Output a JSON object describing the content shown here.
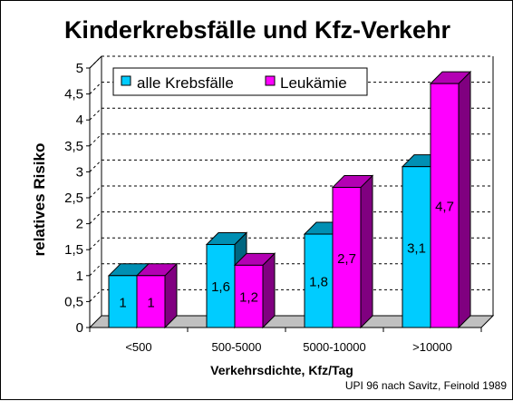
{
  "chart_data": {
    "type": "bar",
    "title": "Kinderkrebsfälle und Kfz-Verkehr",
    "xlabel": "Verkehrsdichte, Kfz/Tag",
    "ylabel": "relatives Risiko",
    "categories": [
      "<500",
      "500-5000",
      "5000-10000",
      ">10000"
    ],
    "series": [
      {
        "name": "alle Krebsfälle",
        "values": [
          1.0,
          1.6,
          1.8,
          3.1
        ],
        "labels": [
          "1",
          "1,6",
          "1,8",
          "3,1"
        ],
        "color": "#00ccff"
      },
      {
        "name": "Leukämie",
        "values": [
          1.0,
          1.2,
          2.7,
          4.7
        ],
        "labels": [
          "1",
          "1,2",
          "2,7",
          "4,7"
        ],
        "color": "#ff00ff"
      }
    ],
    "ylim": [
      0,
      5
    ],
    "yticks": [
      0,
      0.5,
      1,
      1.5,
      2,
      2.5,
      3,
      3.5,
      4,
      4.5,
      5
    ],
    "ytick_labels": [
      "0",
      "0,5",
      "1",
      "1,5",
      "2",
      "2,5",
      "3",
      "3,5",
      "4",
      "4,5",
      "5"
    ],
    "grid": true,
    "legend_position": "top-left",
    "source_note": "UPI 96 nach Savitz, Feinold 1989",
    "style": "3d"
  }
}
